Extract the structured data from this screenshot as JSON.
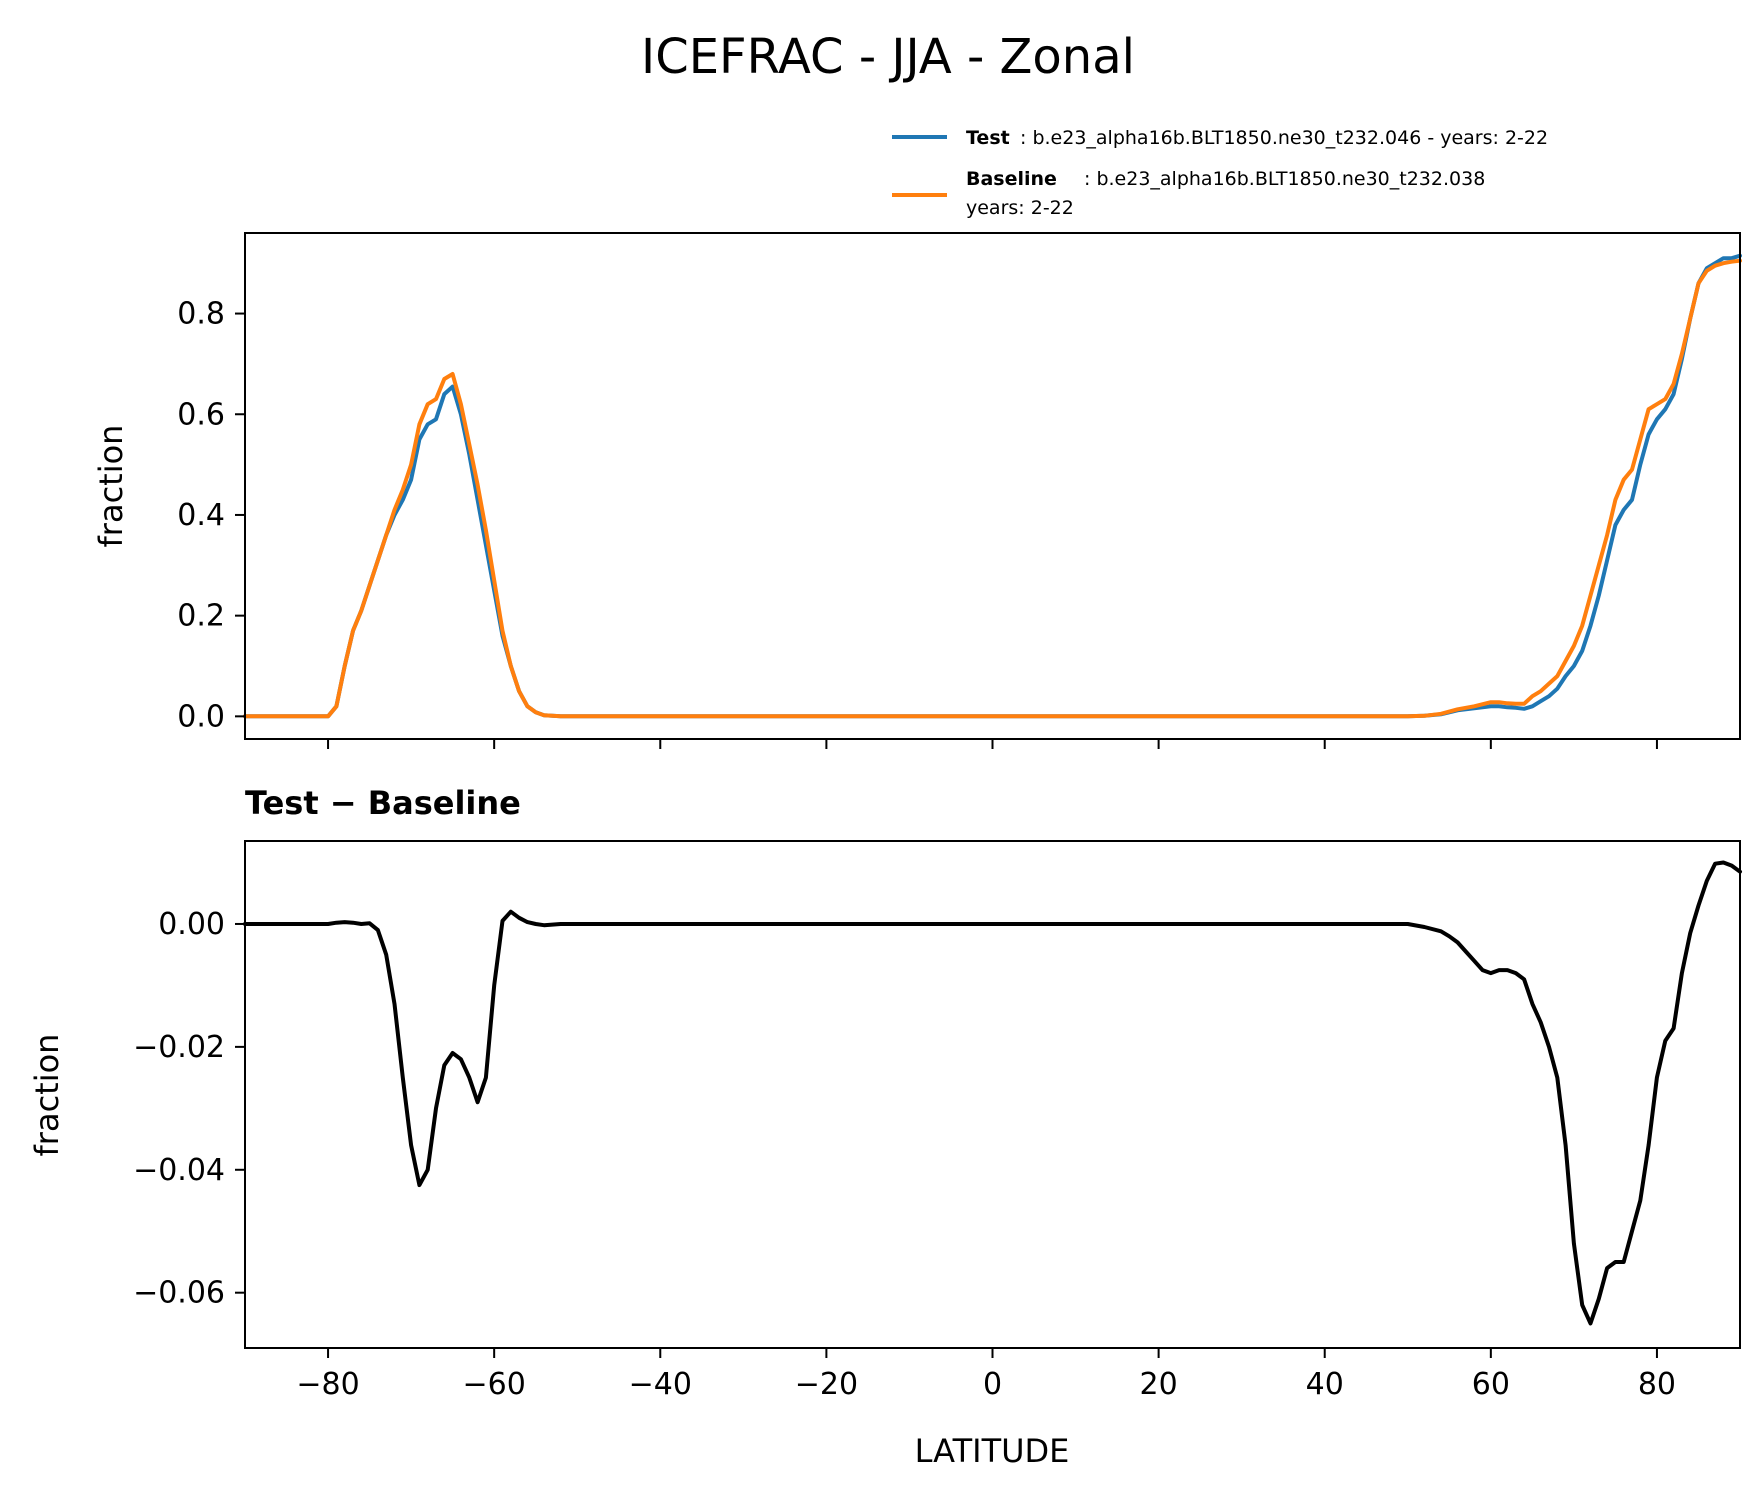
{
  "chart_data": [
    {
      "type": "line",
      "title": "ICEFRAC - JJA - Zonal",
      "xlabel": "",
      "ylabel": "fraction",
      "xlim": [
        -90,
        90
      ],
      "ylim": [
        -0.045,
        0.96
      ],
      "xticks": [
        -80,
        -60,
        -40,
        -20,
        0,
        20,
        40,
        60,
        80
      ],
      "yticks": [
        0.0,
        0.2,
        0.4,
        0.6,
        0.8
      ],
      "ytick_labels": [
        "0.0",
        "0.2",
        "0.4",
        "0.6",
        "0.8"
      ],
      "legend": {
        "location": "top-right",
        "entries": [
          {
            "name": "Test",
            "text": ": b.e23_alpha16b.BLT1850.ne30_t232.046 - years: 2-22",
            "color": "#1f77b4"
          },
          {
            "name": "Baseline",
            "text": ": b.e23_alpha16b.BLT1850.ne30_t232.038",
            "text2": "years: 2-22",
            "color": "#ff7f0e"
          }
        ]
      },
      "series": [
        {
          "name": "Test",
          "color": "#1f77b4",
          "x": [
            -90,
            -80,
            -79,
            -78,
            -77,
            -76,
            -75,
            -74,
            -73,
            -72,
            -71,
            -70,
            -69,
            -68,
            -67,
            -66,
            -65,
            -64,
            -63,
            -62,
            -61,
            -60,
            -59,
            -58,
            -57,
            -56,
            -55,
            -54,
            -52,
            50,
            52,
            54,
            56,
            58,
            60,
            61,
            62,
            63,
            64,
            65,
            66,
            67,
            68,
            69,
            70,
            71,
            72,
            73,
            74,
            75,
            76,
            77,
            78,
            79,
            80,
            81,
            82,
            83,
            84,
            85,
            86,
            87,
            88,
            89,
            90
          ],
          "y": [
            0,
            0,
            0.02,
            0.1,
            0.17,
            0.21,
            0.26,
            0.31,
            0.36,
            0.4,
            0.43,
            0.47,
            0.55,
            0.58,
            0.59,
            0.64,
            0.655,
            0.6,
            0.52,
            0.43,
            0.34,
            0.25,
            0.16,
            0.1,
            0.05,
            0.02,
            0.008,
            0.002,
            0,
            0,
            0.001,
            0.004,
            0.012,
            0.016,
            0.02,
            0.02,
            0.018,
            0.017,
            0.015,
            0.02,
            0.03,
            0.04,
            0.055,
            0.08,
            0.1,
            0.13,
            0.18,
            0.24,
            0.31,
            0.38,
            0.41,
            0.43,
            0.5,
            0.56,
            0.59,
            0.61,
            0.64,
            0.71,
            0.79,
            0.86,
            0.89,
            0.9,
            0.91,
            0.91,
            0.915
          ]
        },
        {
          "name": "Baseline",
          "color": "#ff7f0e",
          "x": [
            -90,
            -80,
            -79,
            -78,
            -77,
            -76,
            -75,
            -74,
            -73,
            -72,
            -71,
            -70,
            -69,
            -68,
            -67,
            -66,
            -65,
            -64,
            -63,
            -62,
            -61,
            -60,
            -59,
            -58,
            -57,
            -56,
            -55,
            -54,
            -52,
            50,
            52,
            54,
            56,
            58,
            60,
            61,
            62,
            63,
            64,
            65,
            66,
            67,
            68,
            69,
            70,
            71,
            72,
            73,
            74,
            75,
            76,
            77,
            78,
            79,
            80,
            81,
            82,
            83,
            84,
            85,
            86,
            87,
            88,
            89,
            90
          ],
          "y": [
            0,
            0,
            0.02,
            0.1,
            0.17,
            0.21,
            0.26,
            0.31,
            0.36,
            0.41,
            0.45,
            0.5,
            0.58,
            0.62,
            0.63,
            0.67,
            0.68,
            0.62,
            0.54,
            0.46,
            0.37,
            0.27,
            0.17,
            0.1,
            0.05,
            0.02,
            0.008,
            0.002,
            0,
            0,
            0.001,
            0.005,
            0.014,
            0.02,
            0.028,
            0.028,
            0.026,
            0.025,
            0.025,
            0.04,
            0.05,
            0.065,
            0.08,
            0.11,
            0.14,
            0.18,
            0.24,
            0.3,
            0.36,
            0.43,
            0.47,
            0.49,
            0.55,
            0.61,
            0.62,
            0.63,
            0.66,
            0.72,
            0.79,
            0.86,
            0.885,
            0.895,
            0.9,
            0.903,
            0.905
          ]
        }
      ]
    },
    {
      "type": "line",
      "title": "Test − Baseline",
      "xlabel": "LATITUDE",
      "ylabel": "fraction",
      "xlim": [
        -90,
        90
      ],
      "ylim": [
        -0.069,
        0.0135
      ],
      "xticks": [
        -80,
        -60,
        -40,
        -20,
        0,
        20,
        40,
        60,
        80
      ],
      "xtick_labels": [
        "−80",
        "−60",
        "−40",
        "−20",
        "0",
        "20",
        "40",
        "60",
        "80"
      ],
      "yticks": [
        0.0,
        -0.02,
        -0.04,
        -0.06
      ],
      "ytick_labels": [
        "0.00",
        "−0.02",
        "−0.04",
        "−0.06"
      ],
      "series": [
        {
          "name": "Test − Baseline",
          "color": "#000000",
          "x": [
            -90,
            -80,
            -79,
            -78,
            -77,
            -76,
            -75,
            -74,
            -73,
            -72,
            -71,
            -70,
            -69,
            -68,
            -67,
            -66,
            -65,
            -64,
            -63,
            -62,
            -61,
            -60,
            -59,
            -58,
            -57,
            -56,
            -55,
            -54,
            -52,
            50,
            52,
            54,
            55,
            56,
            57,
            58,
            59,
            60,
            61,
            62,
            63,
            64,
            65,
            66,
            67,
            68,
            69,
            70,
            71,
            72,
            73,
            74,
            75,
            76,
            77,
            78,
            79,
            80,
            81,
            82,
            83,
            84,
            85,
            86,
            87,
            88,
            89,
            90
          ],
          "y": [
            0,
            0,
            0.0002,
            0.0003,
            0.0002,
            0,
            0.0001,
            -0.001,
            -0.005,
            -0.013,
            -0.025,
            -0.036,
            -0.0425,
            -0.04,
            -0.03,
            -0.023,
            -0.021,
            -0.022,
            -0.025,
            -0.029,
            -0.025,
            -0.01,
            0.0005,
            0.002,
            0.001,
            0.0003,
            0,
            -0.0002,
            0,
            0,
            -0.0005,
            -0.0012,
            -0.002,
            -0.003,
            -0.0045,
            -0.006,
            -0.0075,
            -0.008,
            -0.0075,
            -0.0075,
            -0.008,
            -0.009,
            -0.013,
            -0.016,
            -0.02,
            -0.025,
            -0.036,
            -0.052,
            -0.062,
            -0.065,
            -0.061,
            -0.056,
            -0.055,
            -0.055,
            -0.05,
            -0.045,
            -0.036,
            -0.025,
            -0.019,
            -0.017,
            -0.008,
            -0.0015,
            0.003,
            0.007,
            0.0098,
            0.01,
            0.0095,
            0.0085
          ]
        }
      ]
    }
  ]
}
